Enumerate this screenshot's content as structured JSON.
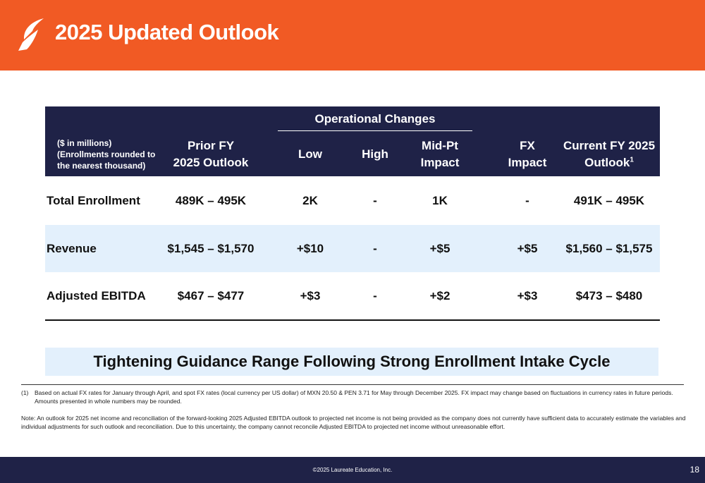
{
  "header": {
    "title": "2025 Updated Outlook"
  },
  "table": {
    "note": [
      "($ in millions)",
      "(Enrollments  rounded  to",
      "the nearest thousand)"
    ],
    "group_header": "Operational Changes",
    "columns": {
      "prior": [
        "Prior FY",
        "2025 Outlook"
      ],
      "low": "Low",
      "high": "High",
      "midpt": [
        "Mid-Pt",
        "Impact"
      ],
      "fx": [
        "FX",
        "Impact"
      ],
      "current": [
        "Current FY 2025",
        "Outlook"
      ],
      "current_sup": "1"
    },
    "rows": [
      {
        "label": "Total Enrollment",
        "prior": "489K – 495K",
        "low": "2K",
        "high": "-",
        "midpt": "1K",
        "fx": "-",
        "current": "491K – 495K"
      },
      {
        "label": "Revenue",
        "prior": "$1,545 – $1,570",
        "low": "+$10",
        "high": "-",
        "midpt": "+$5",
        "fx": "+$5",
        "current": "$1,560 – $1,575"
      },
      {
        "label": "Adjusted EBITDA",
        "prior": "$467 – $477",
        "low": "+$3",
        "high": "-",
        "midpt": "+$2",
        "fx": "+$3",
        "current": "$473 – $480"
      }
    ]
  },
  "callout": "Tightening Guidance Range Following Strong Enrollment Intake Cycle",
  "footnotes": {
    "fn1_marker": "(1)",
    "fn1_line1": "Based on actual FX rates for January through April, and spot FX rates (local currency per US dollar) of MXN 20.50 & PEN 3.71 for May through December 2025. FX impact may change based on fluctuations in currency rates in future periods.",
    "fn1_line2": "Amounts presented in whole numbers may be rounded.",
    "note_line1": "Note: An outlook for 2025 net income and reconciliation of the forward-looking 2025 Adjusted EBITDA outlook to projected net income is not being provided as the company does not currently have sufficient data to accurately estimate the variables and",
    "note_line2": "individual adjustments for such outlook and reconciliation. Due to this uncertainty, the company cannot reconcile Adjusted EBITDA to projected net income without unreasonable effort."
  },
  "footer": {
    "copyright": "©2025 Laureate Education, Inc.",
    "page": "18"
  },
  "colors": {
    "orange": "#f15a24",
    "navy": "#1f2247",
    "light_blue": "#e3f0fc"
  },
  "icons": {
    "logo": "laureate-leaf-logo"
  }
}
